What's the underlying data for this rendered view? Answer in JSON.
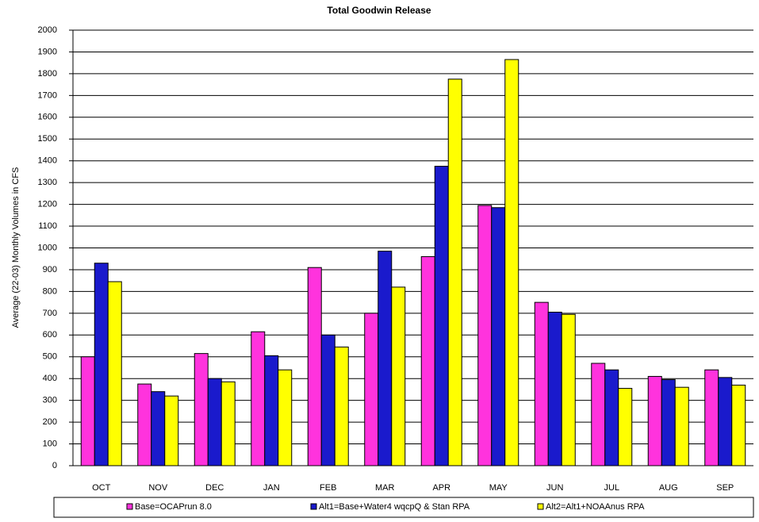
{
  "chart_data": {
    "type": "bar",
    "title": "Total Goodwin Release",
    "y_label": "Average (22-03) Monthly Volumes in CFS",
    "categories": [
      "OCT",
      "NOV",
      "DEC",
      "JAN",
      "FEB",
      "MAR",
      "APR",
      "MAY",
      "JUN",
      "JUL",
      "AUG",
      "SEP"
    ],
    "series": [
      {
        "name": "Base=OCAPrun 8.0",
        "color": "#ff33dd",
        "values": [
          500,
          375,
          515,
          615,
          910,
          700,
          960,
          1195,
          750,
          470,
          410,
          440
        ]
      },
      {
        "name": "Alt1=Base+Water4 wqcpQ & Stan RPA",
        "color": "#1a1acc",
        "values": [
          930,
          340,
          400,
          505,
          600,
          985,
          1375,
          1185,
          705,
          440,
          395,
          405
        ]
      },
      {
        "name": "Alt2=Alt1+NOAAnus RPA",
        "color": "#ffff00",
        "values": [
          845,
          320,
          385,
          440,
          545,
          820,
          1775,
          1865,
          695,
          355,
          360,
          370
        ]
      }
    ],
    "ylim": [
      0,
      2000
    ],
    "yticks": [
      0,
      100,
      200,
      300,
      400,
      500,
      600,
      700,
      800,
      900,
      1000,
      1100,
      1200,
      1300,
      1400,
      1500,
      1600,
      1700,
      1800,
      1900,
      2000
    ],
    "grid": true,
    "legend": "bottom"
  }
}
